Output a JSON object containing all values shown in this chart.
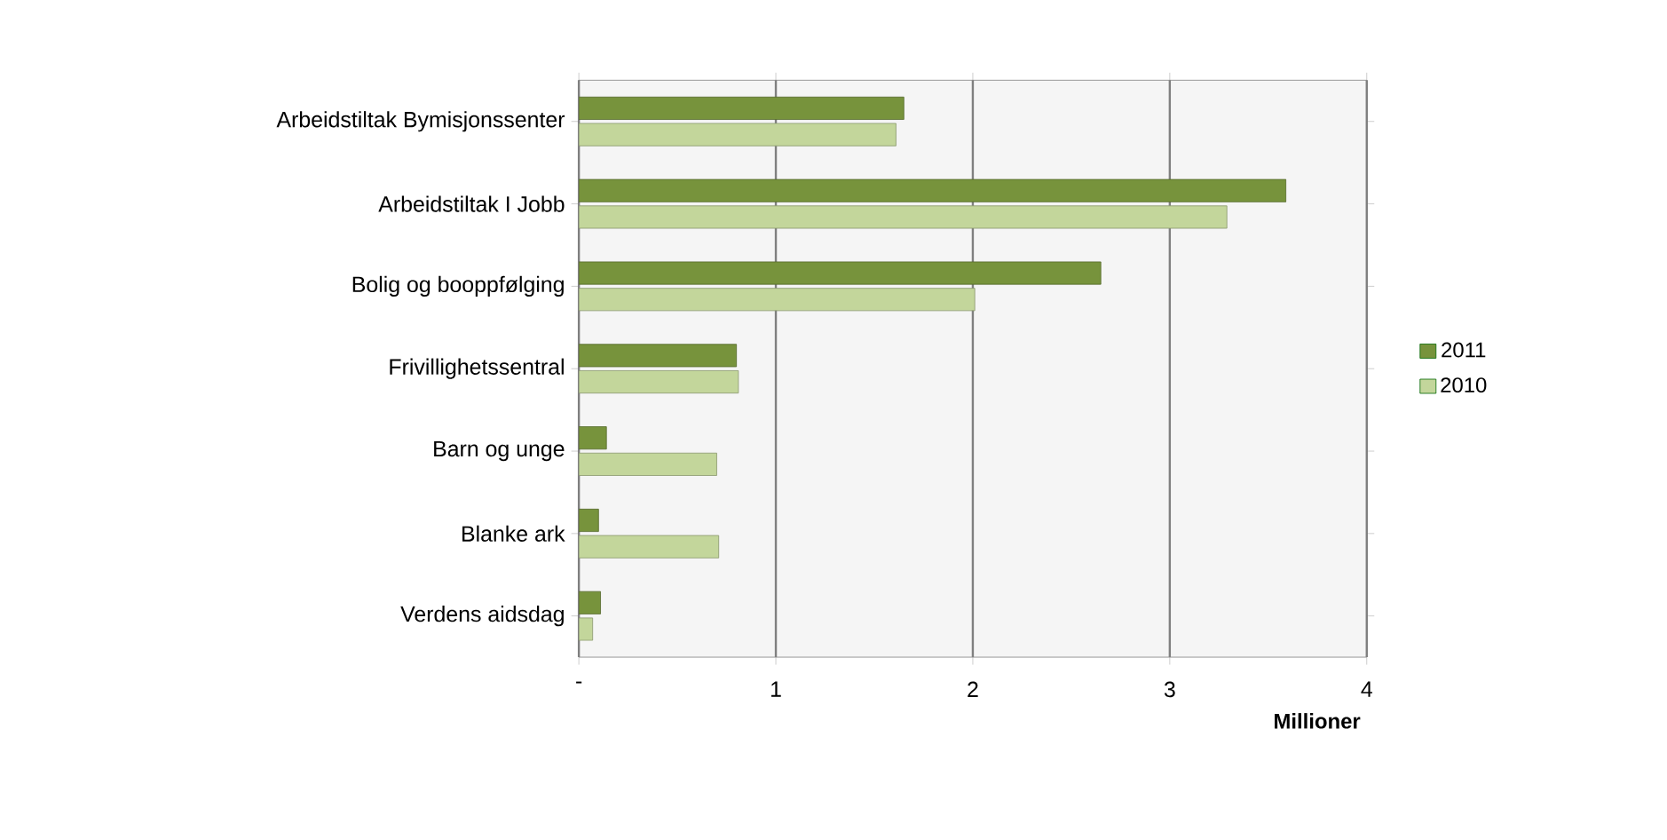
{
  "chart_data": {
    "type": "bar",
    "orientation": "horizontal",
    "xlabel": "Millioner",
    "categories": [
      "Arbeidstiltak Bymisjonssenter",
      "Arbeidstiltak I Jobb",
      "Bolig og booppfølging",
      "Frivillighetssentral",
      "Barn og unge",
      "Blanke ark",
      "Verdens aidsdag"
    ],
    "series": [
      {
        "name": "2011",
        "color": "#77933c",
        "values": [
          1.65,
          3.59,
          2.65,
          0.8,
          0.14,
          0.1,
          0.11
        ]
      },
      {
        "name": "2010",
        "color": "#c3d69b",
        "values": [
          1.61,
          3.29,
          2.01,
          0.81,
          0.7,
          0.71,
          0.07
        ]
      }
    ],
    "xlim": [
      0,
      4
    ],
    "xticks": [
      {
        "value": 0,
        "label": "-"
      },
      1,
      2,
      3,
      4
    ],
    "grid": "x",
    "legend": "right"
  }
}
